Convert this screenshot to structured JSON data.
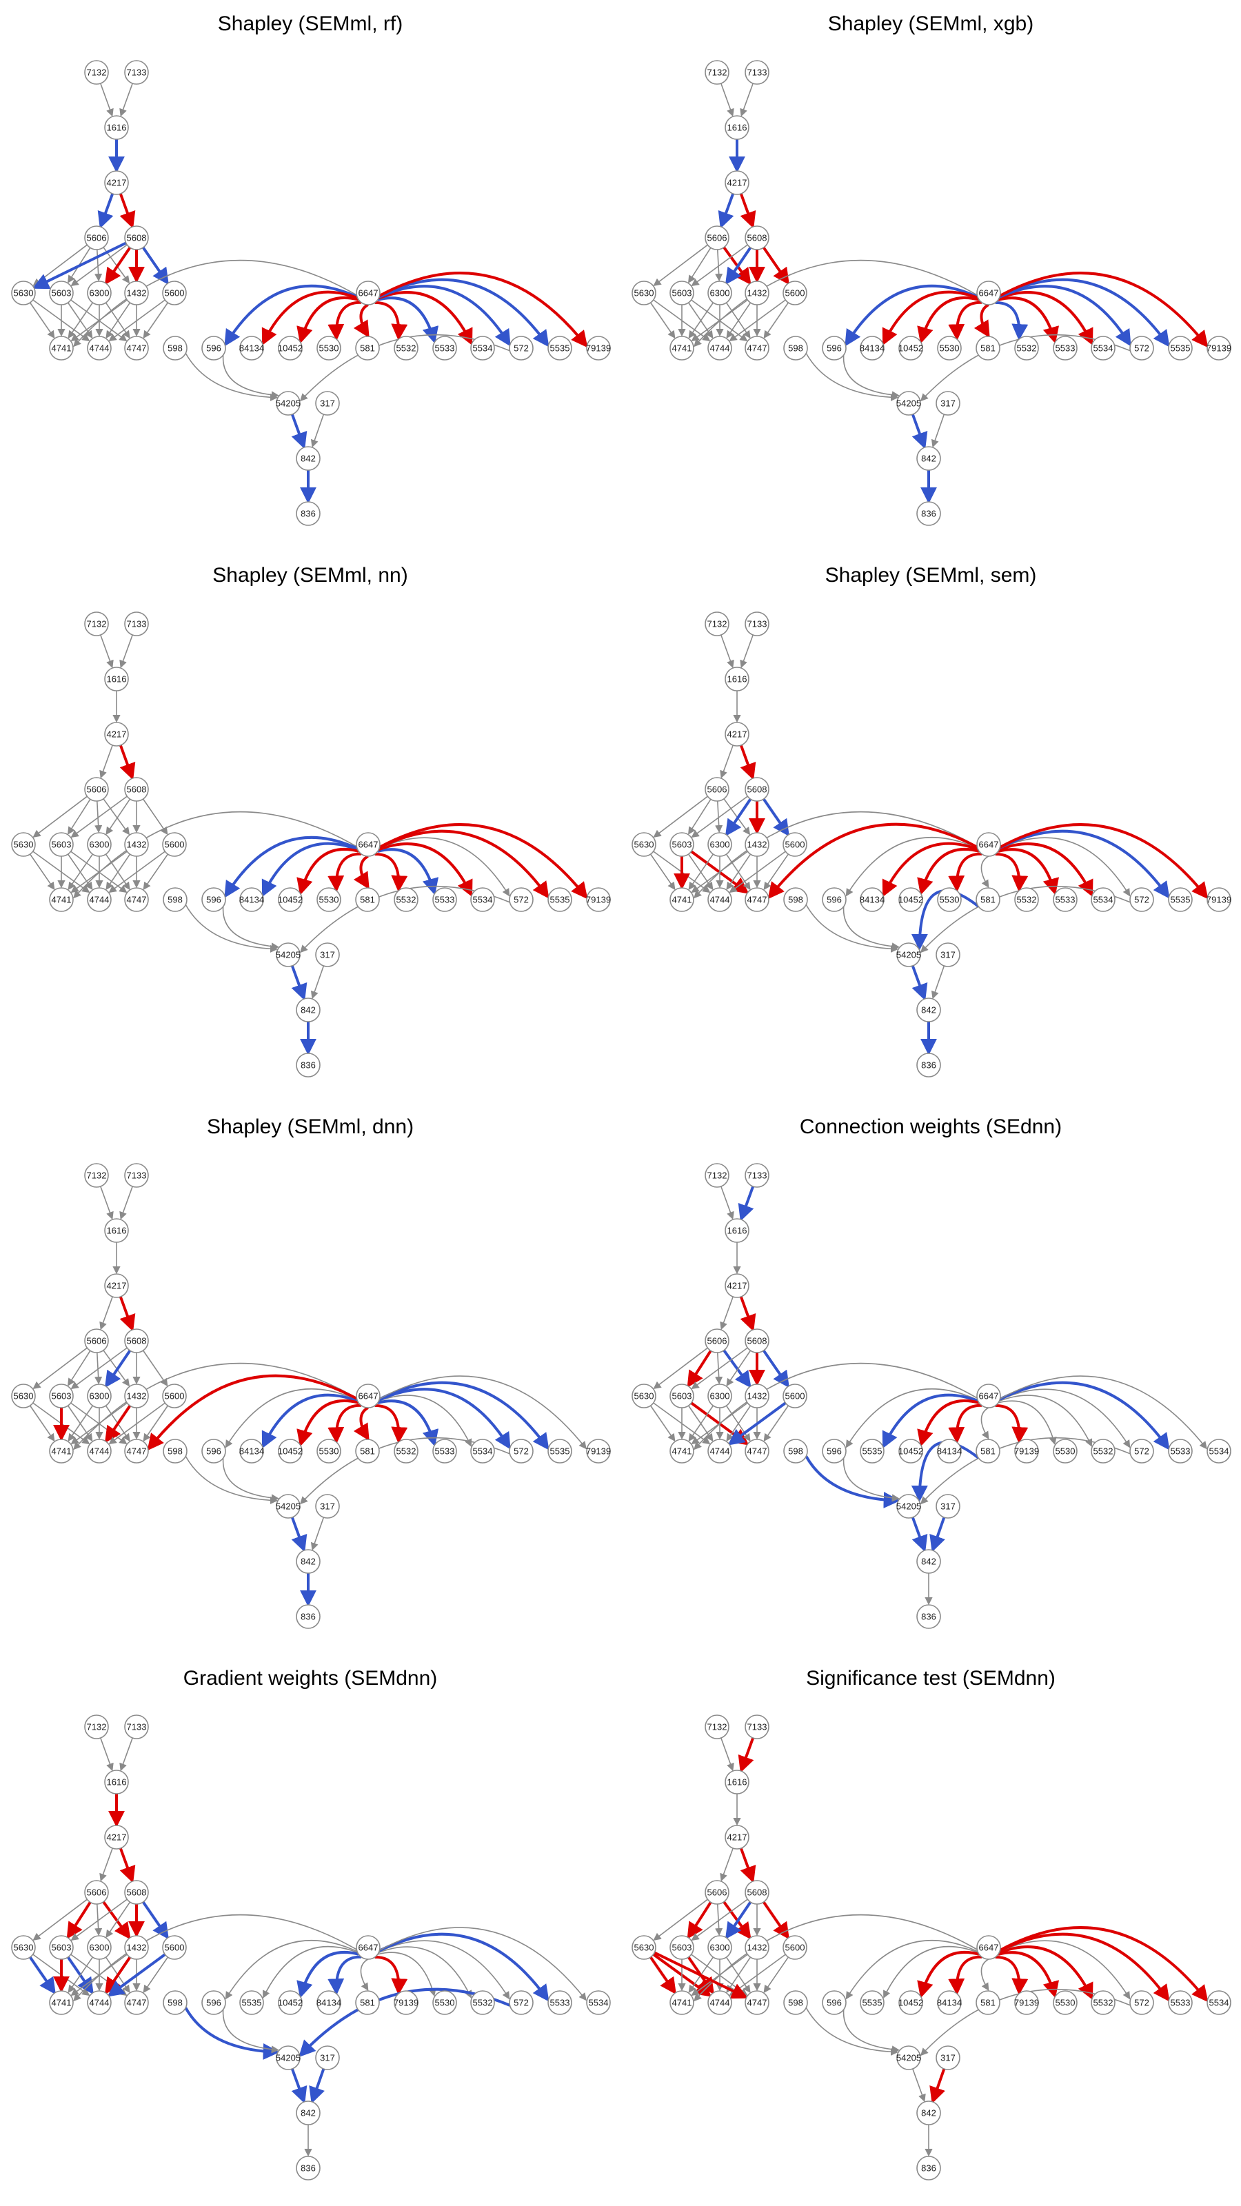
{
  "colors": {
    "positive": "#dd0000",
    "negative": "#3355cc",
    "neutral": "#8a8a8a"
  },
  "panels": [
    {
      "title": "Shapley (SEMml, rf)",
      "row2": [
        "598",
        "596",
        "84134",
        "10452",
        "5530",
        "581",
        "5532",
        "5533",
        "5534",
        "572",
        "5535",
        "79139"
      ],
      "highlights": [
        [
          "1616",
          "4217",
          "b"
        ],
        [
          "4217",
          "5606",
          "b"
        ],
        [
          "4217",
          "5608",
          "r"
        ],
        [
          "5608",
          "5630",
          "b"
        ],
        [
          "5608",
          "6300",
          "r"
        ],
        [
          "5608",
          "1432",
          "r"
        ],
        [
          "5608",
          "5600",
          "b"
        ],
        [
          "6647",
          "596",
          "b"
        ],
        [
          "6647",
          "84134",
          "r"
        ],
        [
          "6647",
          "10452",
          "r"
        ],
        [
          "6647",
          "5530",
          "r"
        ],
        [
          "6647",
          "581",
          "r"
        ],
        [
          "6647",
          "5532",
          "r"
        ],
        [
          "6647",
          "5533",
          "b"
        ],
        [
          "6647",
          "5534",
          "r"
        ],
        [
          "6647",
          "572",
          "b"
        ],
        [
          "6647",
          "5535",
          "b"
        ],
        [
          "6647",
          "79139",
          "r"
        ],
        [
          "54205",
          "842",
          "b"
        ],
        [
          "842",
          "836",
          "b"
        ]
      ]
    },
    {
      "title": "Shapley (SEMml, xgb)",
      "row2": [
        "598",
        "596",
        "84134",
        "10452",
        "5530",
        "581",
        "5532",
        "5533",
        "5534",
        "572",
        "5535",
        "79139"
      ],
      "highlights": [
        [
          "1616",
          "4217",
          "b"
        ],
        [
          "4217",
          "5606",
          "b"
        ],
        [
          "4217",
          "5608",
          "r"
        ],
        [
          "5608",
          "6300",
          "b"
        ],
        [
          "5608",
          "1432",
          "r"
        ],
        [
          "5608",
          "5600",
          "r"
        ],
        [
          "5606",
          "1432",
          "r"
        ],
        [
          "6647",
          "596",
          "b"
        ],
        [
          "6647",
          "84134",
          "r"
        ],
        [
          "6647",
          "10452",
          "r"
        ],
        [
          "6647",
          "5530",
          "r"
        ],
        [
          "6647",
          "581",
          "r"
        ],
        [
          "6647",
          "5532",
          "b"
        ],
        [
          "6647",
          "5533",
          "r"
        ],
        [
          "6647",
          "5534",
          "r"
        ],
        [
          "6647",
          "572",
          "b"
        ],
        [
          "6647",
          "5535",
          "b"
        ],
        [
          "6647",
          "79139",
          "r"
        ],
        [
          "54205",
          "842",
          "b"
        ],
        [
          "842",
          "836",
          "b"
        ]
      ]
    },
    {
      "title": "Shapley (SEMml, nn)",
      "row2": [
        "598",
        "596",
        "84134",
        "10452",
        "5530",
        "581",
        "5532",
        "5533",
        "5534",
        "572",
        "5535",
        "79139"
      ],
      "highlights": [
        [
          "4217",
          "5608",
          "r"
        ],
        [
          "6647",
          "596",
          "b"
        ],
        [
          "6647",
          "84134",
          "b"
        ],
        [
          "6647",
          "10452",
          "r"
        ],
        [
          "6647",
          "5530",
          "r"
        ],
        [
          "6647",
          "581",
          "r"
        ],
        [
          "6647",
          "5532",
          "r"
        ],
        [
          "6647",
          "5533",
          "b"
        ],
        [
          "6647",
          "5534",
          "r"
        ],
        [
          "6647",
          "5535",
          "r"
        ],
        [
          "6647",
          "79139",
          "r"
        ],
        [
          "54205",
          "842",
          "b"
        ],
        [
          "842",
          "836",
          "b"
        ]
      ]
    },
    {
      "title": "Shapley (SEMml, sem)",
      "row2": [
        "598",
        "596",
        "84134",
        "10452",
        "5530",
        "581",
        "5532",
        "5533",
        "5534",
        "572",
        "5535",
        "79139"
      ],
      "highlights": [
        [
          "4217",
          "5608",
          "r"
        ],
        [
          "5608",
          "6300",
          "b"
        ],
        [
          "5608",
          "1432",
          "r"
        ],
        [
          "5608",
          "5600",
          "b"
        ],
        [
          "5603",
          "4741",
          "r"
        ],
        [
          "5603",
          "4747",
          "r"
        ],
        [
          "6647",
          "4747",
          "r"
        ],
        [
          "6647",
          "84134",
          "r"
        ],
        [
          "6647",
          "10452",
          "r"
        ],
        [
          "6647",
          "5530",
          "r"
        ],
        [
          "6647",
          "5532",
          "r"
        ],
        [
          "6647",
          "5533",
          "r"
        ],
        [
          "6647",
          "5534",
          "r"
        ],
        [
          "6647",
          "5535",
          "b"
        ],
        [
          "6647",
          "79139",
          "r"
        ],
        [
          "581",
          "54205",
          "b"
        ],
        [
          "54205",
          "842",
          "b"
        ],
        [
          "842",
          "836",
          "b"
        ]
      ]
    },
    {
      "title": "Shapley (SEMml, dnn)",
      "row2": [
        "598",
        "596",
        "84134",
        "10452",
        "5530",
        "581",
        "5532",
        "5533",
        "5534",
        "572",
        "5535",
        "79139"
      ],
      "highlights": [
        [
          "4217",
          "5608",
          "r"
        ],
        [
          "5608",
          "6300",
          "b"
        ],
        [
          "5603",
          "4741",
          "r"
        ],
        [
          "1432",
          "4744",
          "r"
        ],
        [
          "6647",
          "4747",
          "r"
        ],
        [
          "6647",
          "84134",
          "b"
        ],
        [
          "6647",
          "10452",
          "r"
        ],
        [
          "6647",
          "5530",
          "r"
        ],
        [
          "6647",
          "581",
          "r"
        ],
        [
          "6647",
          "5532",
          "r"
        ],
        [
          "6647",
          "5533",
          "b"
        ],
        [
          "6647",
          "572",
          "b"
        ],
        [
          "6647",
          "5535",
          "b"
        ],
        [
          "54205",
          "842",
          "b"
        ],
        [
          "842",
          "836",
          "b"
        ]
      ]
    },
    {
      "title": "Connection weights (SEdnn)",
      "row2": [
        "598",
        "596",
        "5535",
        "10452",
        "84134",
        "581",
        "79139",
        "5530",
        "5532",
        "572",
        "5533",
        "5534"
      ],
      "highlights": [
        [
          "7133",
          "1616",
          "b"
        ],
        [
          "4217",
          "5608",
          "r"
        ],
        [
          "5606",
          "5603",
          "r"
        ],
        [
          "5606",
          "1432",
          "b"
        ],
        [
          "5608",
          "1432",
          "r"
        ],
        [
          "5608",
          "5600",
          "b"
        ],
        [
          "5603",
          "4747",
          "r"
        ],
        [
          "5600",
          "4744",
          "b"
        ],
        [
          "6647",
          "5535",
          "b"
        ],
        [
          "6647",
          "10452",
          "r"
        ],
        [
          "6647",
          "84134",
          "r"
        ],
        [
          "6647",
          "79139",
          "r"
        ],
        [
          "6647",
          "5533",
          "b"
        ],
        [
          "598",
          "54205",
          "b"
        ],
        [
          "581",
          "54205",
          "b"
        ],
        [
          "54205",
          "842",
          "b"
        ],
        [
          "317",
          "842",
          "b"
        ]
      ]
    },
    {
      "title": "Gradient weights (SEMdnn)",
      "row2": [
        "598",
        "596",
        "5535",
        "10452",
        "84134",
        "581",
        "79139",
        "5530",
        "5532",
        "572",
        "5533",
        "5534"
      ],
      "highlights": [
        [
          "1616",
          "4217",
          "r"
        ],
        [
          "4217",
          "5608",
          "r"
        ],
        [
          "5606",
          "5603",
          "r"
        ],
        [
          "5606",
          "1432",
          "r"
        ],
        [
          "5608",
          "1432",
          "r"
        ],
        [
          "5608",
          "5600",
          "b"
        ],
        [
          "5630",
          "4741",
          "b"
        ],
        [
          "5603",
          "4741",
          "r"
        ],
        [
          "5603",
          "4744",
          "b"
        ],
        [
          "1432",
          "4744",
          "r"
        ],
        [
          "5600",
          "4744",
          "b"
        ],
        [
          "6647",
          "10452",
          "b"
        ],
        [
          "6647",
          "84134",
          "b"
        ],
        [
          "6647",
          "79139",
          "r"
        ],
        [
          "6647",
          "5533",
          "b"
        ],
        [
          "598",
          "54205",
          "b"
        ],
        [
          "572",
          "54205",
          "b"
        ],
        [
          "54205",
          "842",
          "b"
        ],
        [
          "317",
          "842",
          "b"
        ]
      ]
    },
    {
      "title": "Significance test (SEMdnn)",
      "row2": [
        "598",
        "596",
        "5535",
        "10452",
        "84134",
        "581",
        "79139",
        "5530",
        "5532",
        "572",
        "5533",
        "5534"
      ],
      "highlights": [
        [
          "7133",
          "1616",
          "r"
        ],
        [
          "4217",
          "5608",
          "r"
        ],
        [
          "5606",
          "5603",
          "r"
        ],
        [
          "5606",
          "1432",
          "r"
        ],
        [
          "5608",
          "6300",
          "b"
        ],
        [
          "5608",
          "5600",
          "r"
        ],
        [
          "5630",
          "4741",
          "r"
        ],
        [
          "5630",
          "4744",
          "r"
        ],
        [
          "5630",
          "4747",
          "r"
        ],
        [
          "5603",
          "4744",
          "r"
        ],
        [
          "6647",
          "10452",
          "r"
        ],
        [
          "6647",
          "84134",
          "r"
        ],
        [
          "6647",
          "79139",
          "r"
        ],
        [
          "6647",
          "5530",
          "r"
        ],
        [
          "6647",
          "5532",
          "r"
        ],
        [
          "6647",
          "5533",
          "r"
        ],
        [
          "6647",
          "5534",
          "r"
        ],
        [
          "317",
          "842",
          "r"
        ]
      ]
    }
  ]
}
